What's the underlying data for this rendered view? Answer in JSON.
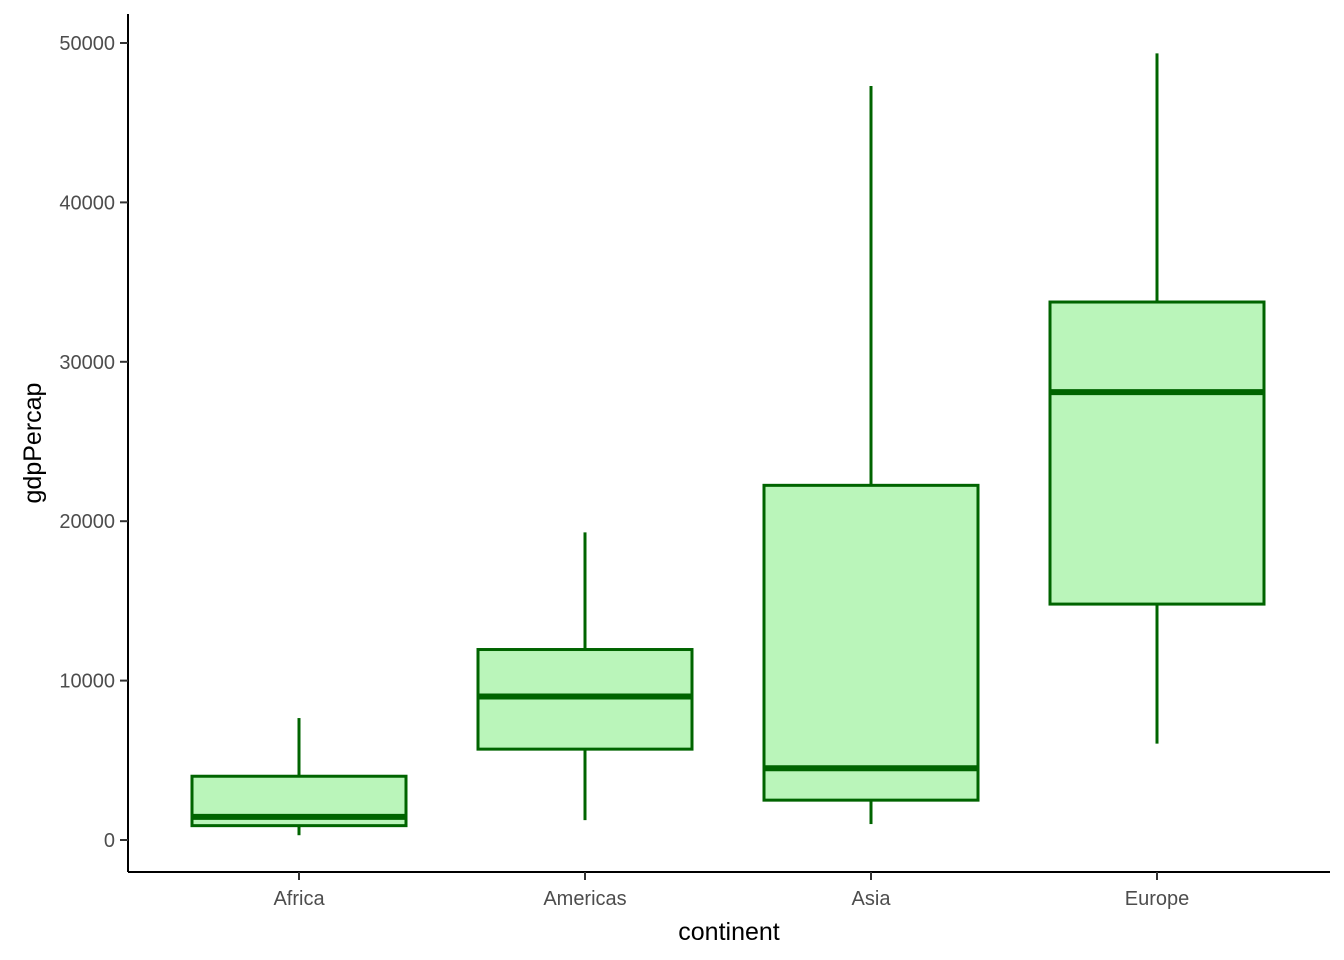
{
  "chart_data": {
    "type": "box",
    "title": "",
    "xlabel": "continent",
    "ylabel": "gdpPercap",
    "ylim": [
      -2000,
      52000
    ],
    "yticks": [
      0,
      10000,
      20000,
      30000,
      40000,
      50000
    ],
    "yticks_labels": [
      "0",
      "10000",
      "20000",
      "30000",
      "40000",
      "50000"
    ],
    "categories": [
      "Africa",
      "Americas",
      "Asia",
      "Europe"
    ],
    "boxes": [
      {
        "category": "Africa",
        "whisker_low": 300,
        "q1": 900,
        "median": 1450,
        "q3": 4000,
        "whisker_high": 7650
      },
      {
        "category": "Americas",
        "whisker_low": 1250,
        "q1": 5700,
        "median": 9000,
        "q3": 11950,
        "whisker_high": 19300
      },
      {
        "category": "Asia",
        "whisker_low": 1000,
        "q1": 2500,
        "median": 4500,
        "q3": 22250,
        "whisker_high": 47300
      },
      {
        "category": "Europe",
        "whisker_low": 6050,
        "q1": 14800,
        "median": 28100,
        "q3": 33750,
        "whisker_high": 49350
      }
    ],
    "grid": false,
    "legend": "none",
    "colors": {
      "box_fill": "#baf5ba",
      "box_line": "#006400",
      "axis_line": "#000000",
      "tick_text": "#4d4d4d"
    }
  }
}
